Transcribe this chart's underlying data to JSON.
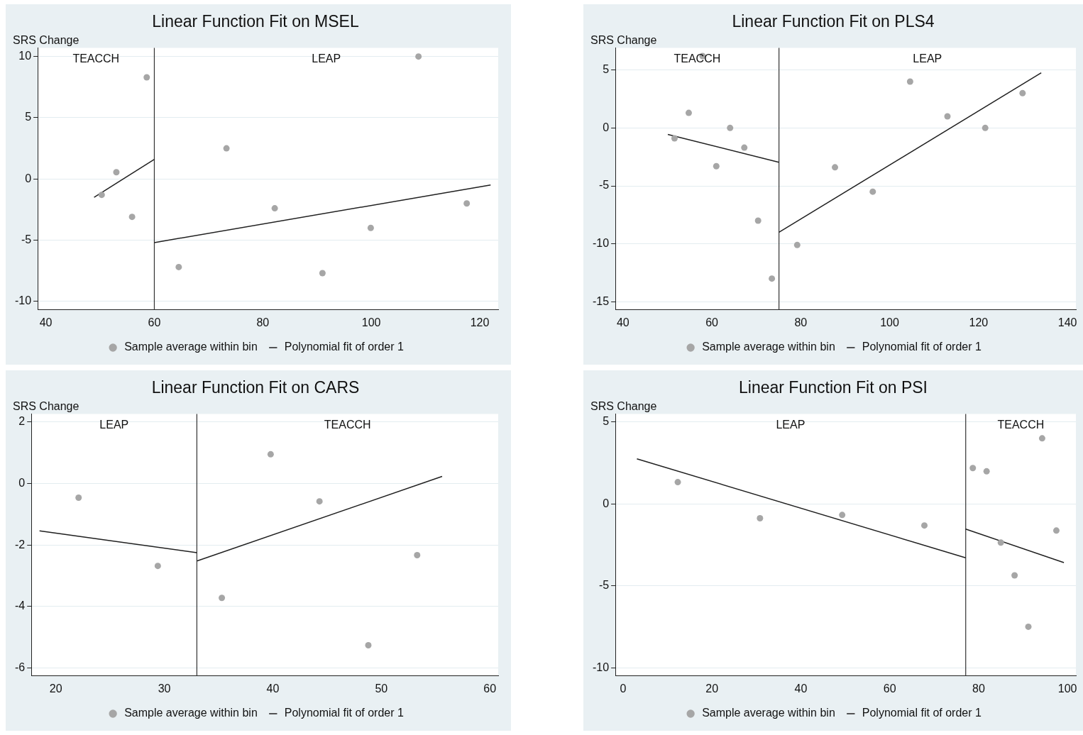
{
  "chart_data": [
    {
      "type": "scatter",
      "title": "Linear Function Fit on MSEL",
      "ylabel": "SRS Change",
      "xlim": [
        38.5,
        123.4
      ],
      "xticks": [
        40,
        60,
        80,
        100,
        120
      ],
      "ylim": [
        -10.7,
        10.7
      ],
      "yticks": [
        -10,
        -5,
        0,
        5,
        10
      ],
      "grid": "y",
      "legend": "bottom",
      "series": [
        {
          "name": "Sample average within bin",
          "marker": "circle",
          "color": "#a6a6a6",
          "x": [
            50.3,
            53.0,
            55.9,
            58.6,
            64.5,
            73.3,
            82.2,
            91.0,
            99.9,
            108.7,
            117.6
          ],
          "values": [
            -1.3,
            0.55,
            -3.1,
            8.3,
            -7.2,
            2.5,
            -2.4,
            -7.7,
            -4.0,
            10,
            -2.0
          ]
        },
        {
          "name": "Polynomial fit of order 1",
          "type": "line",
          "color": "#1f1f1f",
          "x": [
            48.9,
            60
          ],
          "values": [
            -1.5,
            1.6
          ]
        },
        {
          "type": "line",
          "color": "#1f1f1f",
          "x": [
            60,
            122
          ],
          "values": [
            -5.2,
            -0.5
          ]
        }
      ],
      "ref_lines": [
        {
          "axis": "x",
          "value": 60,
          "color": "#333333"
        }
      ],
      "annotations": [
        "TEACCH",
        "LEAP"
      ]
    },
    {
      "type": "scatter",
      "title": "Linear Function Fit on PLS4",
      "ylabel": "SRS Change",
      "xlim": [
        38.3,
        141.9
      ],
      "xticks": [
        40,
        60,
        80,
        100,
        120,
        140
      ],
      "ylim": [
        -15.7,
        6.9
      ],
      "yticks": [
        -15,
        -10,
        -5,
        0,
        5
      ],
      "grid": "y",
      "legend": "bottom",
      "series": [
        {
          "name": "Sample average within bin",
          "marker": "circle",
          "color": "#a6a6a6",
          "x": [
            51.6,
            54.8,
            57.9,
            61.0,
            64.1,
            67.3,
            70.4,
            73.5,
            79.2,
            87.7,
            96.2,
            104.6,
            113.0,
            121.5,
            129.9
          ],
          "values": [
            -0.9,
            1.3,
            6.2,
            -3.3,
            0.0,
            -1.7,
            -8.0,
            -13.0,
            -10.1,
            -3.4,
            -5.5,
            4.0,
            1.0,
            0.0,
            3.0
          ]
        },
        {
          "name": "Polynomial fit of order 1",
          "type": "line",
          "color": "#1f1f1f",
          "x": [
            50.1,
            75.1
          ],
          "values": [
            -0.56,
            -2.96
          ]
        },
        {
          "type": "line",
          "color": "#1f1f1f",
          "x": [
            75.1,
            134.1
          ],
          "values": [
            -9.0,
            4.75
          ]
        }
      ],
      "ref_lines": [
        {
          "axis": "x",
          "value": 75.1,
          "color": "#333333"
        }
      ],
      "annotations": [
        "TEACCH",
        "LEAP"
      ]
    },
    {
      "type": "scatter",
      "title": "Linear Function Fit on CARS",
      "ylabel": "SRS Change",
      "xlim": [
        17.75,
        60.77
      ],
      "xticks": [
        20,
        30,
        40,
        50,
        60
      ],
      "ylim": [
        -6.26,
        2.26
      ],
      "yticks": [
        -6,
        -4,
        -2,
        0,
        2
      ],
      "grid": "y",
      "legend": "bottom",
      "series": [
        {
          "name": "Sample average within bin",
          "marker": "circle",
          "color": "#a6a6a6",
          "x": [
            22.1,
            29.4,
            35.3,
            39.8,
            44.3,
            48.8,
            53.3
          ],
          "values": [
            -0.46,
            -2.68,
            -3.72,
            0.95,
            -0.58,
            -5.26,
            -2.33
          ]
        },
        {
          "name": "Polynomial fit of order 1",
          "type": "line",
          "color": "#1f1f1f",
          "x": [
            18.5,
            33.0
          ],
          "values": [
            -1.54,
            -2.25
          ]
        },
        {
          "type": "line",
          "color": "#1f1f1f",
          "x": [
            33.0,
            55.6
          ],
          "values": [
            -2.52,
            0.23
          ]
        }
      ],
      "ref_lines": [
        {
          "axis": "x",
          "value": 33.0,
          "color": "#333333"
        }
      ],
      "annotations": [
        "LEAP",
        "TEACCH"
      ]
    },
    {
      "type": "scatter",
      "title": "Linear Function Fit on PSI",
      "ylabel": "SRS Change",
      "xlim": [
        -1.74,
        101.9
      ],
      "xticks": [
        0,
        20,
        40,
        60,
        80,
        100
      ],
      "ylim": [
        -10.49,
        5.47
      ],
      "yticks": [
        -10,
        -5,
        0,
        5
      ],
      "grid": "y",
      "legend": "bottom",
      "series": [
        {
          "name": "Sample average within bin",
          "marker": "circle",
          "color": "#a6a6a6",
          "x": [
            12.3,
            30.8,
            49.3,
            67.8,
            78.7,
            81.8,
            85.0,
            88.1,
            91.2,
            94.3,
            97.5
          ],
          "values": [
            1.32,
            -0.88,
            -0.68,
            -1.32,
            2.18,
            1.98,
            -2.36,
            -4.36,
            -7.49,
            3.99,
            -1.63
          ]
        },
        {
          "name": "Polynomial fit of order 1",
          "type": "line",
          "color": "#1f1f1f",
          "x": [
            3.1,
            77.1
          ],
          "values": [
            2.74,
            -3.29
          ]
        },
        {
          "type": "line",
          "color": "#1f1f1f",
          "x": [
            77.1,
            99.2
          ],
          "values": [
            -1.54,
            -3.58
          ]
        }
      ],
      "ref_lines": [
        {
          "axis": "x",
          "value": 77.1,
          "color": "#333333"
        }
      ],
      "annotations": [
        "LEAP",
        "TEACCH"
      ]
    }
  ]
}
